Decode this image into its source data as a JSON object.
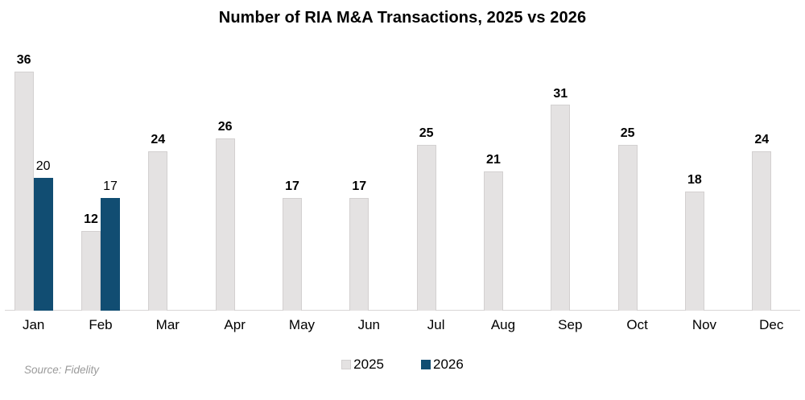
{
  "title": "Number of RIA M&A Transactions, 2025 vs 2026",
  "source_note": "Source: Fidelity",
  "legend": [
    {
      "label": "2025",
      "color": "#e4e2e2"
    },
    {
      "label": "2026",
      "color": "#114d72"
    }
  ],
  "colors": {
    "bar_2025_fill": "#e4e2e2",
    "bar_2025_border": "#d3d0d0",
    "bar_2026_fill": "#114d72",
    "axis_line": "#d8d6d6",
    "source_text": "#9a9a9a"
  },
  "chart_data": {
    "type": "bar",
    "title": "Number of RIA M&A Transactions, 2025 vs 2026",
    "categories": [
      "Jan",
      "Feb",
      "Mar",
      "Apr",
      "May",
      "Jun",
      "Jul",
      "Aug",
      "Sep",
      "Oct",
      "Nov",
      "Dec"
    ],
    "series": [
      {
        "name": "2025",
        "values": [
          36,
          12,
          24,
          26,
          17,
          17,
          25,
          21,
          31,
          25,
          18,
          24
        ]
      },
      {
        "name": "2026",
        "values": [
          20,
          17,
          null,
          null,
          null,
          null,
          null,
          null,
          null,
          null,
          null,
          null
        ]
      }
    ],
    "xlabel": "",
    "ylabel": "",
    "ylim": [
      0,
      36
    ],
    "grid": false,
    "value_labels": true,
    "legend_position": "bottom-center"
  }
}
